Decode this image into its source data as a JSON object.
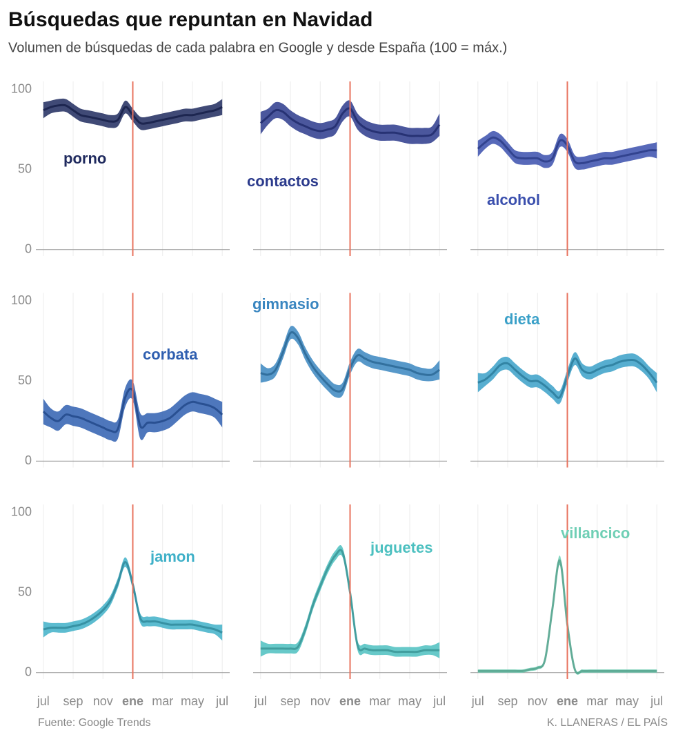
{
  "title": "Búsquedas que repuntan en Navidad",
  "subtitle": "Volumen de búsquedas de cada palabra en Google y desde España (100 = máx.)",
  "source": "Fuente: Google Trends",
  "credit": "K. LLANERAS  /  EL PAÍS",
  "x": [
    0,
    0.5,
    1,
    1.5,
    2,
    2.5,
    3,
    3.5,
    4,
    4.5,
    5,
    5.5,
    6,
    6.5,
    7,
    7.5,
    8,
    8.5,
    9,
    9.5,
    10,
    10.5,
    11,
    11.5,
    12
  ],
  "xlim": [
    -0.5,
    12.5
  ],
  "xticks": [
    {
      "value": 0,
      "label": "jul"
    },
    {
      "value": 2,
      "label": "sep"
    },
    {
      "value": 4,
      "label": "nov"
    },
    {
      "value": 6,
      "label": "ene"
    },
    {
      "value": 8,
      "label": "mar"
    },
    {
      "value": 10,
      "label": "may"
    },
    {
      "value": 12,
      "label": "jul"
    }
  ],
  "ylim": [
    -4,
    105
  ],
  "yticks": [
    0,
    50,
    100
  ],
  "vline": 6,
  "vline_color": "#e8735e",
  "chart_data": [
    {
      "type": "line",
      "name": "porno",
      "color": "#1f2a5e",
      "values": [
        87,
        89,
        90,
        90,
        87,
        84,
        83,
        82,
        81,
        80,
        81,
        89,
        84,
        79,
        79,
        80,
        81,
        82,
        83,
        84,
        84,
        85,
        86,
        87,
        89
      ],
      "lower": [
        82,
        85,
        86,
        86,
        83,
        80,
        79,
        78,
        77,
        76,
        77,
        85,
        80,
        75,
        75,
        76,
        77,
        78,
        79,
        80,
        80,
        81,
        82,
        83,
        84
      ],
      "upper": [
        92,
        93,
        94,
        94,
        91,
        88,
        87,
        86,
        85,
        84,
        85,
        93,
        88,
        83,
        83,
        84,
        85,
        86,
        87,
        88,
        88,
        89,
        90,
        91,
        94
      ]
    },
    {
      "type": "line",
      "name": "contactos",
      "color": "#2b3a8c",
      "values": [
        79,
        83,
        87,
        86,
        82,
        79,
        77,
        75,
        74,
        75,
        77,
        85,
        88,
        80,
        76,
        74,
        73,
        73,
        73,
        72,
        71,
        71,
        71,
        72,
        78
      ],
      "lower": [
        72,
        78,
        82,
        81,
        77,
        74,
        72,
        70,
        69,
        70,
        72,
        80,
        83,
        75,
        71,
        69,
        68,
        68,
        68,
        67,
        66,
        66,
        66,
        67,
        71
      ],
      "upper": [
        86,
        88,
        92,
        91,
        87,
        84,
        82,
        80,
        79,
        80,
        82,
        90,
        93,
        85,
        81,
        79,
        78,
        78,
        78,
        77,
        76,
        76,
        76,
        77,
        85
      ]
    },
    {
      "type": "line",
      "name": "alcohol",
      "color": "#3a4fad",
      "values": [
        63,
        67,
        70,
        68,
        63,
        58,
        57,
        57,
        57,
        55,
        57,
        68,
        65,
        55,
        54,
        55,
        56,
        57,
        57,
        58,
        59,
        60,
        61,
        62,
        62
      ],
      "lower": [
        58,
        63,
        66,
        64,
        59,
        54,
        53,
        53,
        53,
        51,
        53,
        64,
        61,
        51,
        50,
        51,
        52,
        53,
        53,
        54,
        55,
        56,
        57,
        58,
        57
      ],
      "upper": [
        68,
        71,
        74,
        72,
        67,
        62,
        61,
        61,
        61,
        59,
        61,
        72,
        69,
        59,
        58,
        59,
        60,
        61,
        61,
        62,
        63,
        64,
        65,
        66,
        67
      ]
    },
    {
      "type": "line",
      "name": "corbata",
      "color": "#2f5fb0",
      "values": [
        31,
        27,
        25,
        29,
        28,
        27,
        25,
        23,
        21,
        19,
        20,
        40,
        44,
        22,
        24,
        24,
        25,
        27,
        31,
        35,
        37,
        36,
        35,
        33,
        29
      ],
      "lower": [
        23,
        21,
        19,
        23,
        22,
        21,
        19,
        17,
        15,
        13,
        14,
        34,
        38,
        14,
        18,
        18,
        19,
        21,
        25,
        29,
        31,
        30,
        29,
        27,
        21
      ],
      "upper": [
        39,
        33,
        31,
        35,
        34,
        33,
        31,
        29,
        27,
        25,
        26,
        46,
        50,
        30,
        30,
        30,
        31,
        33,
        37,
        41,
        43,
        42,
        41,
        39,
        37
      ]
    },
    {
      "type": "line",
      "name": "gimnasio",
      "color": "#3a86c0",
      "values": [
        55,
        54,
        57,
        68,
        80,
        77,
        67,
        59,
        53,
        48,
        44,
        45,
        58,
        66,
        64,
        62,
        61,
        60,
        59,
        58,
        57,
        55,
        54,
        54,
        57
      ],
      "lower": [
        49,
        50,
        53,
        64,
        76,
        73,
        63,
        55,
        49,
        44,
        40,
        41,
        54,
        62,
        60,
        58,
        57,
        56,
        55,
        54,
        53,
        51,
        50,
        50,
        51
      ],
      "upper": [
        61,
        58,
        61,
        72,
        84,
        81,
        71,
        63,
        57,
        52,
        48,
        49,
        62,
        70,
        68,
        66,
        65,
        64,
        63,
        62,
        61,
        59,
        58,
        58,
        63
      ]
    },
    {
      "type": "line",
      "name": "dieta",
      "color": "#3aa0c8",
      "values": [
        49,
        51,
        55,
        60,
        61,
        57,
        53,
        50,
        50,
        47,
        43,
        40,
        53,
        64,
        57,
        55,
        57,
        59,
        60,
        62,
        63,
        63,
        60,
        55,
        49
      ],
      "lower": [
        43,
        47,
        51,
        56,
        57,
        53,
        49,
        46,
        46,
        43,
        39,
        36,
        49,
        60,
        53,
        51,
        53,
        55,
        56,
        58,
        59,
        59,
        56,
        51,
        43
      ],
      "upper": [
        55,
        55,
        59,
        64,
        65,
        61,
        57,
        54,
        54,
        51,
        47,
        44,
        57,
        68,
        61,
        59,
        61,
        63,
        64,
        66,
        67,
        67,
        64,
        59,
        55
      ]
    },
    {
      "type": "line",
      "name": "jamon",
      "color": "#3fb0c8",
      "values": [
        27,
        28,
        28,
        28,
        29,
        30,
        32,
        35,
        39,
        45,
        56,
        69,
        55,
        34,
        32,
        32,
        31,
        30,
        30,
        30,
        30,
        29,
        28,
        27,
        25
      ],
      "lower": [
        22,
        25,
        25,
        25,
        26,
        27,
        29,
        32,
        36,
        42,
        53,
        66,
        52,
        31,
        29,
        29,
        28,
        27,
        27,
        27,
        27,
        26,
        25,
        24,
        20
      ],
      "upper": [
        32,
        31,
        31,
        31,
        32,
        33,
        35,
        38,
        42,
        48,
        59,
        72,
        58,
        37,
        35,
        35,
        34,
        33,
        33,
        33,
        33,
        32,
        31,
        30,
        30
      ]
    },
    {
      "type": "line",
      "name": "juguetes",
      "color": "#4cc0c0",
      "values": [
        15,
        15,
        15,
        15,
        15,
        16,
        27,
        42,
        54,
        65,
        73,
        75,
        50,
        17,
        15,
        14,
        14,
        14,
        13,
        13,
        13,
        13,
        14,
        14,
        14
      ],
      "lower": [
        10,
        12,
        12,
        12,
        12,
        13,
        24,
        39,
        51,
        62,
        70,
        72,
        47,
        14,
        12,
        11,
        11,
        11,
        10,
        10,
        10,
        10,
        11,
        11,
        9
      ],
      "upper": [
        20,
        18,
        18,
        18,
        18,
        19,
        30,
        45,
        57,
        68,
        76,
        78,
        53,
        20,
        18,
        17,
        17,
        17,
        16,
        16,
        16,
        16,
        17,
        17,
        19
      ]
    },
    {
      "type": "line",
      "name": "villancico",
      "color": "#6fcfb5",
      "values": [
        1,
        1,
        1,
        1,
        1,
        1,
        1,
        2,
        3,
        8,
        40,
        70,
        30,
        2,
        1,
        1,
        1,
        1,
        1,
        1,
        1,
        1,
        1,
        1,
        1
      ],
      "lower": [
        0,
        0,
        0,
        0,
        0,
        0,
        0,
        1,
        2,
        7,
        38,
        67,
        28,
        1,
        0,
        0,
        0,
        0,
        0,
        0,
        0,
        0,
        0,
        0,
        0
      ],
      "upper": [
        2,
        2,
        2,
        2,
        2,
        2,
        2,
        3,
        4,
        9,
        42,
        73,
        32,
        3,
        2,
        2,
        2,
        2,
        2,
        2,
        2,
        2,
        2,
        2,
        2
      ]
    }
  ]
}
